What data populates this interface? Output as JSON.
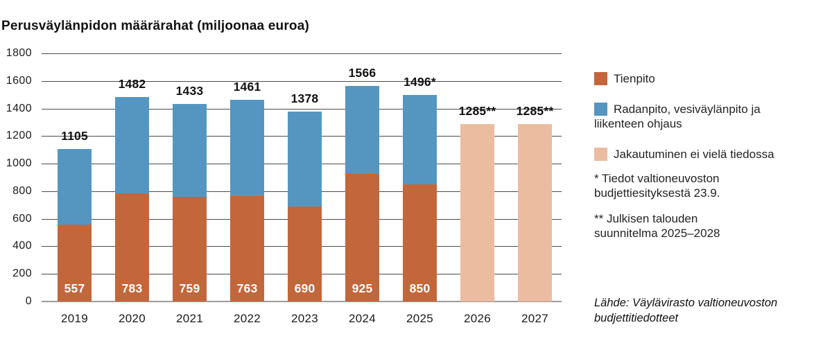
{
  "title": "Perusväylänpidon määrärahat (miljoonaa euroa)",
  "colors": {
    "tienpito": "#c2673c",
    "radanpito": "#5596c0",
    "jakautuminen": "#ebbca0",
    "gridline": "#4a4a4a",
    "axis": "#9b9b9b",
    "inbar_text": "#ffffff"
  },
  "chart_data": {
    "type": "bar",
    "stacked": true,
    "title": "Perusväylänpidon määrärahat (miljoonaa euroa)",
    "categories": [
      "2019",
      "2020",
      "2021",
      "2022",
      "2023",
      "2024",
      "2025",
      "2026",
      "2027"
    ],
    "series": [
      {
        "name": "Tienpito",
        "color_key": "tienpito",
        "values": [
          557,
          783,
          759,
          763,
          690,
          925,
          850,
          0,
          0
        ]
      },
      {
        "name": "Radanpito, vesiväylänpito ja liikenteen ohjaus",
        "color_key": "radanpito",
        "values": [
          548,
          699,
          674,
          698,
          688,
          641,
          646,
          0,
          0
        ]
      },
      {
        "name": "Jakautuminen ei vielä tiedossa",
        "color_key": "jakautuminen",
        "values": [
          0,
          0,
          0,
          0,
          0,
          0,
          0,
          1285,
          1285
        ]
      }
    ],
    "totals": [
      1105,
      1482,
      1433,
      1461,
      1378,
      1566,
      1496,
      1285,
      1285
    ],
    "total_labels": [
      "1105",
      "1482",
      "1433",
      "1461",
      "1378",
      "1566",
      "1496*",
      "1285**",
      "1285**"
    ],
    "bar_value_labels": [
      "557",
      "783",
      "759",
      "763",
      "690",
      "925",
      "850",
      "",
      ""
    ],
    "xlabel": "",
    "ylabel": "",
    "ylim": [
      0,
      1800
    ],
    "ytick_step": 200,
    "grid": true,
    "legend_position": "right"
  },
  "legend": {
    "items": [
      {
        "label": "Tienpito",
        "color_key": "tienpito"
      },
      {
        "label": "Radanpito, vesiväylänpito ja liikenteen ohjaus",
        "color_key": "radanpito"
      },
      {
        "label": "Jakautuminen ei vielä tiedossa",
        "color_key": "jakautuminen"
      }
    ]
  },
  "notes": {
    "note1": "* Tiedot valtioneuvoston budjettiesityksestä 23.9.",
    "note2": "** Julkisen talouden suunnitelma 2025–2028"
  },
  "source": "Lähde: Väylävirasto valtioneuvoston budjettitiedotteet"
}
